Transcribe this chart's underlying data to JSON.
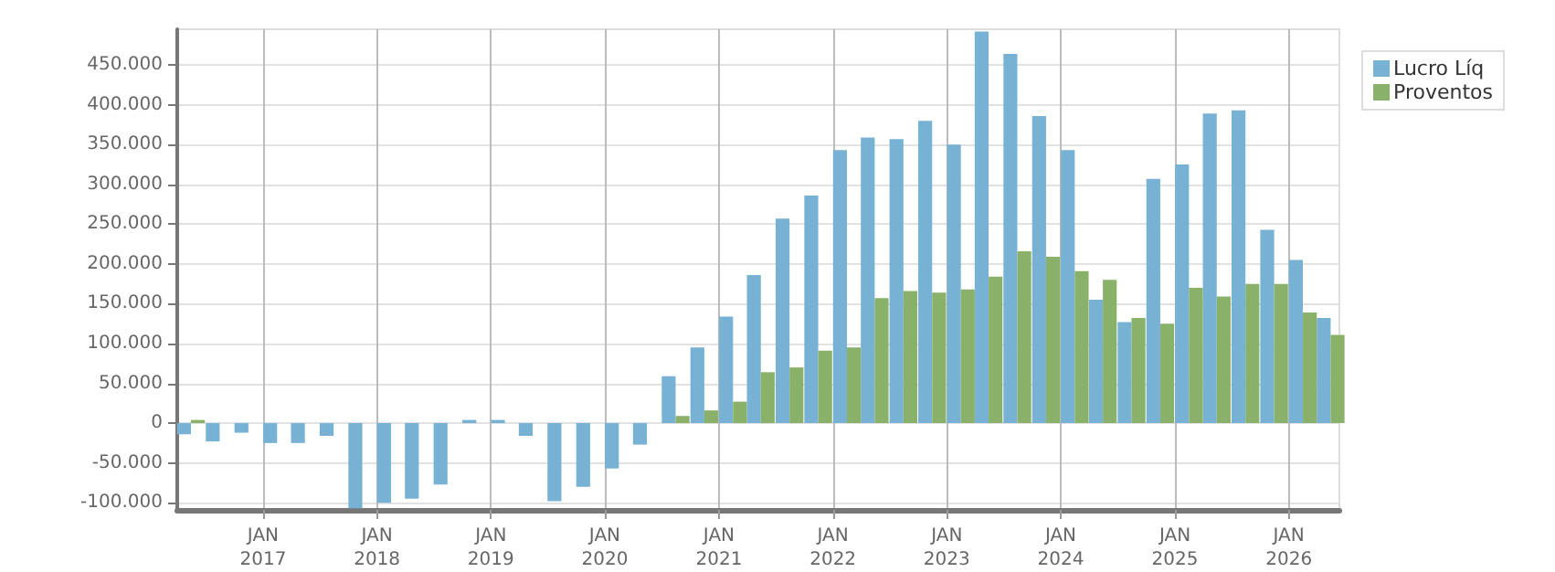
{
  "chart_data": {
    "type": "bar",
    "x": [
      "2016-05-15",
      "2016-08-15",
      "2016-11-15",
      "2017-02-15",
      "2017-05-15",
      "2017-08-15",
      "2017-11-15",
      "2018-02-15",
      "2018-05-15",
      "2018-08-15",
      "2018-11-15",
      "2019-02-15",
      "2019-05-15",
      "2019-08-15",
      "2019-11-15",
      "2020-02-15",
      "2020-05-15",
      "2020-08-15",
      "2020-11-15",
      "2021-02-15",
      "2021-05-15",
      "2021-08-15",
      "2021-11-15",
      "2022-02-15",
      "2022-05-15",
      "2022-08-15",
      "2022-11-15",
      "2023-02-15",
      "2023-05-15",
      "2023-08-15",
      "2023-11-15",
      "2024-02-15",
      "2024-05-15",
      "2024-08-15",
      "2024-11-15",
      "2025-02-15",
      "2025-05-15",
      "2025-08-15",
      "2025-11-15",
      "2026-02-15",
      "2026-05-15"
    ],
    "series": [
      {
        "name": "Lucro Líq",
        "color": "#77b1d4",
        "values": [
          -14000,
          -23000,
          -12000,
          -25000,
          -25000,
          -16000,
          -107000,
          -100000,
          -95000,
          -77000,
          4000,
          4000,
          -16000,
          -98000,
          -80000,
          -57000,
          -27000,
          59000,
          95000,
          134000,
          186000,
          257000,
          286000,
          343000,
          359000,
          357000,
          380000,
          350000,
          492000,
          464000,
          386000,
          343000,
          155000,
          127000,
          307000,
          325000,
          389000,
          393000,
          243000,
          205000,
          132000
        ]
      },
      {
        "name": "Proventos",
        "color": "#8ab16a",
        "values": [
          4000,
          0,
          0,
          0,
          0,
          0,
          0,
          0,
          0,
          0,
          0,
          0,
          0,
          0,
          0,
          0,
          0,
          9000,
          16000,
          27000,
          64000,
          70000,
          91000,
          95000,
          157000,
          166000,
          164000,
          168000,
          184000,
          216000,
          209000,
          191000,
          180000,
          132000,
          125000,
          170000,
          159000,
          175000,
          175000,
          139000,
          111000
        ]
      }
    ],
    "xlim": [
      "2016-04-01",
      "2026-06-12"
    ],
    "xticks": [
      {
        "value": "2017-01-01",
        "label": "JAN\n2017"
      },
      {
        "value": "2018-01-01",
        "label": "JAN\n2018"
      },
      {
        "value": "2019-01-01",
        "label": "JAN\n2019"
      },
      {
        "value": "2020-01-01",
        "label": "JAN\n2020"
      },
      {
        "value": "2021-01-01",
        "label": "JAN\n2021"
      },
      {
        "value": "2022-01-01",
        "label": "JAN\n2022"
      },
      {
        "value": "2023-01-01",
        "label": "JAN\n2023"
      },
      {
        "value": "2024-01-01",
        "label": "JAN\n2024"
      },
      {
        "value": "2025-01-01",
        "label": "JAN\n2025"
      },
      {
        "value": "2026-01-01",
        "label": "JAN\n2026"
      }
    ],
    "ylim": [
      -109000,
      495000
    ],
    "yticks": [
      {
        "value": -100000,
        "label": "-100.000"
      },
      {
        "value": -50000,
        "label": "-50.000"
      },
      0,
      {
        "value": 50000,
        "label": "50.000"
      },
      {
        "value": 100000,
        "label": "100.000"
      },
      {
        "value": 150000,
        "label": "150.000"
      },
      {
        "value": 200000,
        "label": "200.000"
      },
      {
        "value": 250000,
        "label": "250.000"
      },
      {
        "value": 300000,
        "label": "300.000"
      },
      {
        "value": 350000,
        "label": "350.000"
      },
      {
        "value": 400000,
        "label": "400.000"
      },
      {
        "value": 450000,
        "label": "450.000"
      }
    ],
    "grid": true,
    "legend": "top right"
  }
}
